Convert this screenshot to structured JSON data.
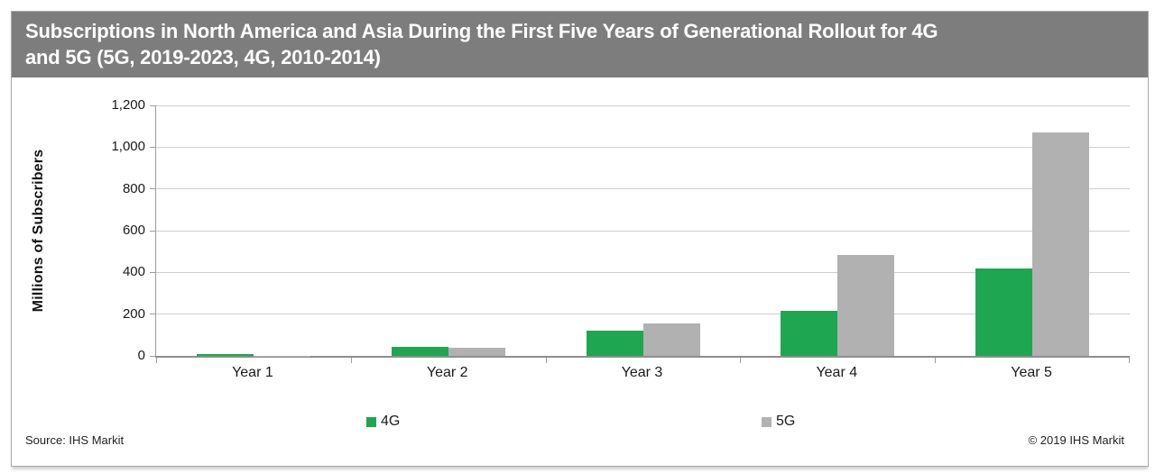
{
  "header": {
    "title_lines": [
      "Subscriptions in North America and Asia During the First Five Years of Generational Rollout for 4G",
      "and 5G (5G, 2019-2023, 4G, 2010-2014)"
    ],
    "bg_color": "#7d7d7d"
  },
  "chart_data": {
    "type": "bar",
    "categories": [
      "Year 1",
      "Year 2",
      "Year 3",
      "Year 4",
      "Year 5"
    ],
    "series": [
      {
        "name": "4G",
        "color": "#1ea750",
        "values": [
          10,
          45,
          120,
          215,
          420
        ]
      },
      {
        "name": "5G",
        "color": "#b1b1b1",
        "values": [
          2,
          40,
          155,
          485,
          1070
        ]
      }
    ],
    "title": "Subscriptions in North America and Asia During the First Five Years of Generational Rollout for 4G and 5G (5G, 2019-2023, 4G, 2010-2014)",
    "xlabel": "",
    "ylabel": "Millions of Subscribers",
    "ylim": [
      0,
      1200
    ],
    "ytick_step": 200,
    "yticks": [
      "0",
      "200",
      "400",
      "600",
      "800",
      "1,000",
      "1,200"
    ],
    "grid": true,
    "legend_position": "bottom"
  },
  "footer": {
    "source": "Source: IHS Markit",
    "copyright": "© 2019 IHS Markit"
  }
}
